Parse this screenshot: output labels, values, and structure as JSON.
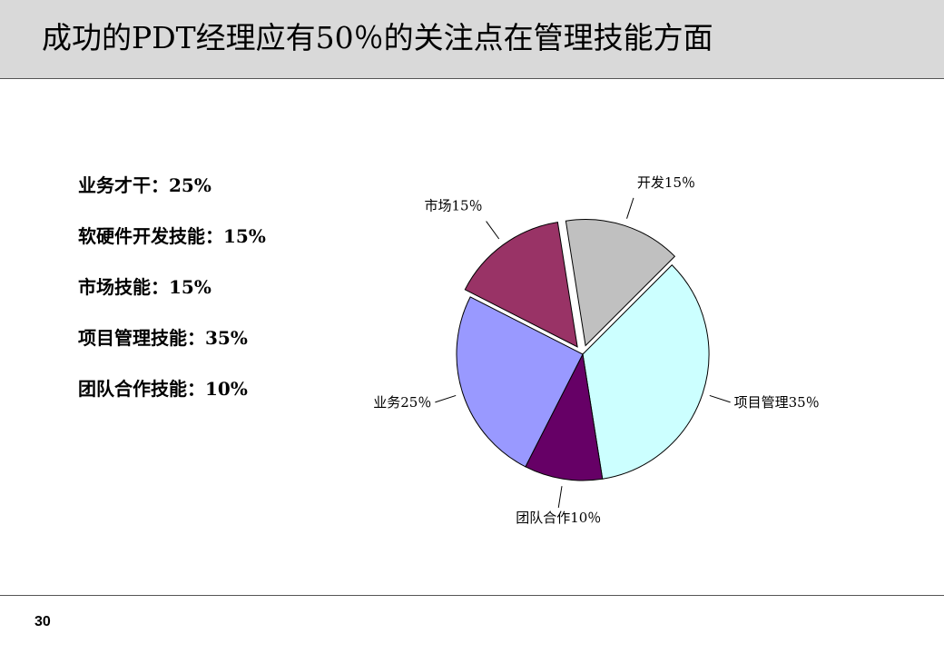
{
  "slide": {
    "title": "成功的PDT经理应有50％的关注点在管理技能方面",
    "page_number": "30"
  },
  "skills": [
    "业务才干：25%",
    "软硬件开发技能：15%",
    "市场技能：15%",
    "项目管理技能：35%",
    "团队合作技能：10%"
  ],
  "chart_data": {
    "type": "pie",
    "slices": [
      {
        "label": "项目管理35％",
        "value": 35,
        "color": "#ccffff",
        "exploded": false
      },
      {
        "label": "团队合作10％",
        "value": 10,
        "color": "#660066",
        "exploded": false
      },
      {
        "label": "业务25％",
        "value": 25,
        "color": "#9999ff",
        "exploded": false
      },
      {
        "label": "市场15％",
        "value": 15,
        "color": "#993366",
        "exploded": true
      },
      {
        "label": "开发15％",
        "value": 15,
        "color": "#c0c0c0",
        "exploded": true
      }
    ]
  }
}
